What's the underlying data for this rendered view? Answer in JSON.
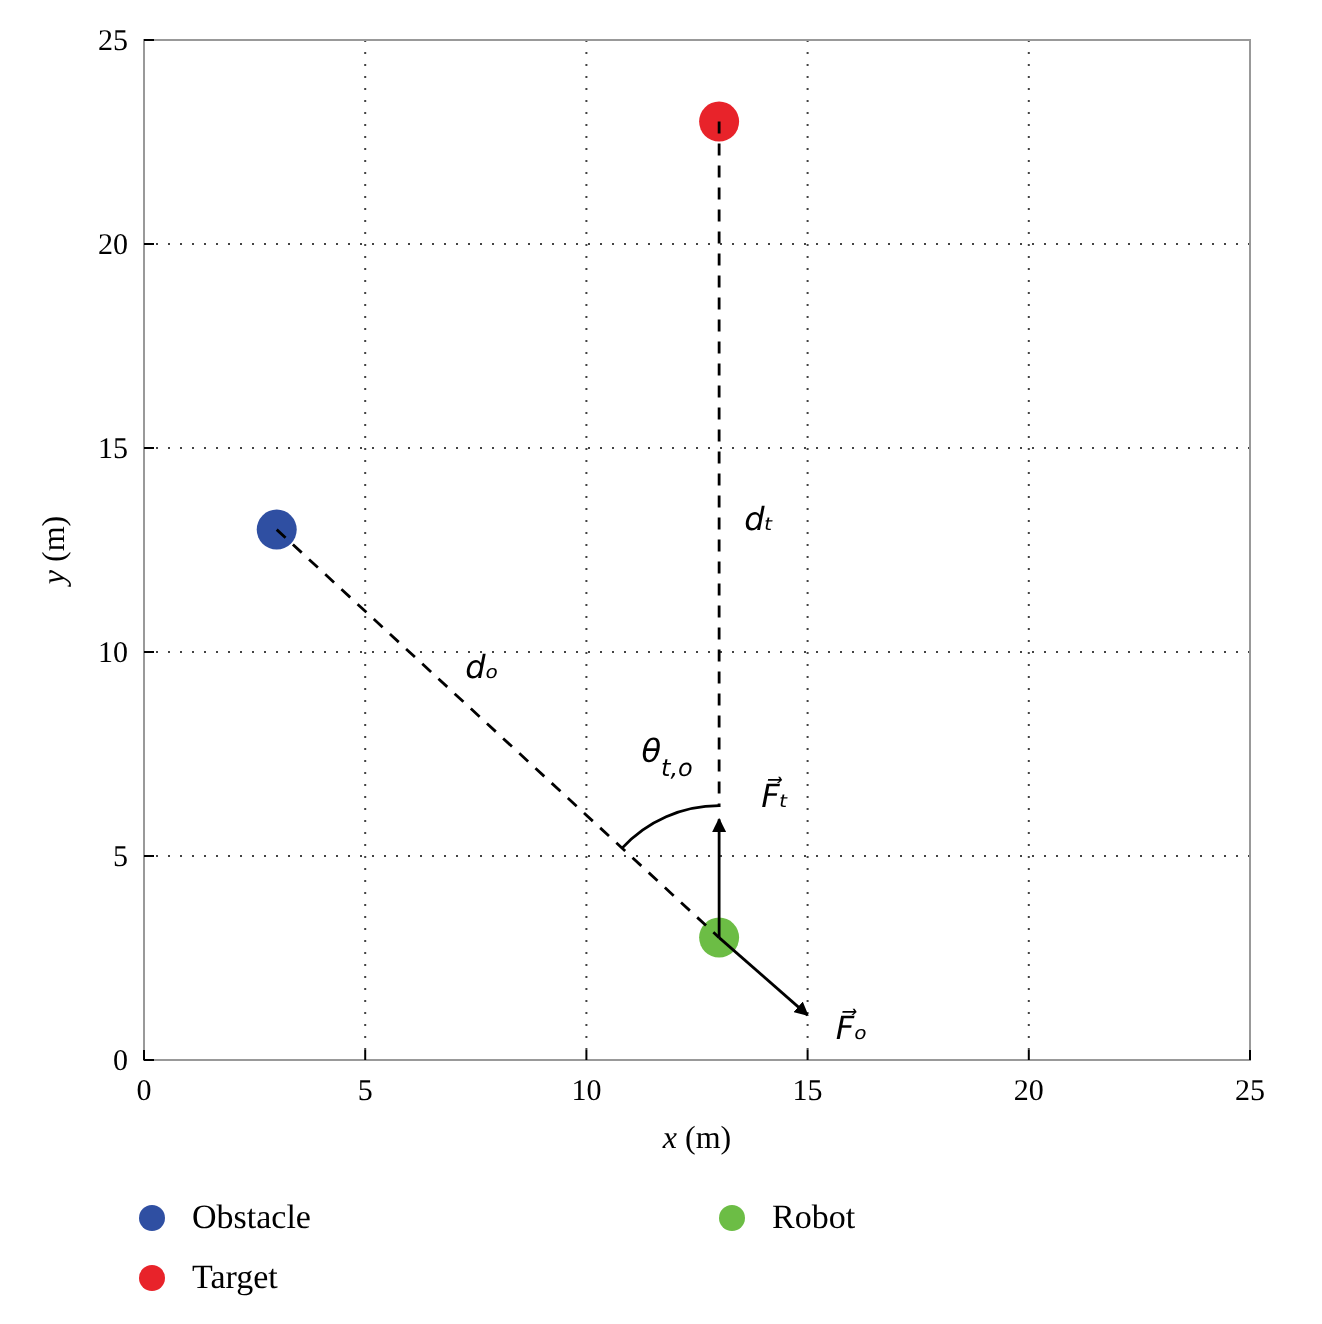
{
  "chart_data": {
    "type": "scatter",
    "xlabel": "x (m)",
    "ylabel": "y (m)",
    "xlim": [
      0,
      25
    ],
    "ylim": [
      0,
      25
    ],
    "xticks": [
      0,
      5,
      10,
      15,
      20,
      25
    ],
    "yticks": [
      0,
      5,
      10,
      15,
      20,
      25
    ],
    "grid": true,
    "legend": "bottom",
    "marker": "circle",
    "series": [
      {
        "name": "Obstacle",
        "color": "#2f4fa2",
        "x": [
          3
        ],
        "values": [
          13
        ]
      },
      {
        "name": "Target",
        "color": "#e8232a",
        "x": [
          13
        ],
        "values": [
          23
        ]
      },
      {
        "name": "Robot",
        "color": "#6cbd45",
        "x": [
          13
        ],
        "values": [
          3
        ]
      },
      {
        "type": "line",
        "color": "#000000",
        "line_style": "dashed",
        "marker": "none",
        "x": [
          3,
          13
        ],
        "values": [
          13,
          3
        ]
      },
      {
        "type": "line",
        "color": "#000000",
        "line_style": "dashed",
        "marker": "none",
        "x": [
          13,
          13
        ],
        "values": [
          23,
          6.2
        ]
      },
      {
        "type": "line",
        "color": "#000000",
        "line_style": "solid",
        "marker": "none",
        "x": [
          13,
          13
        ],
        "values": [
          3,
          5.9
        ]
      },
      {
        "type": "line",
        "color": "#000000",
        "line_style": "solid",
        "marker": "none",
        "x": [
          13,
          15
        ],
        "values": [
          3,
          1.1
        ]
      }
    ],
    "annotations": [
      "dₜ",
      "dₒ",
      "θ$_{t,o}$",
      "F⃗ₜ",
      "F⃗ₒ"
    ]
  }
}
